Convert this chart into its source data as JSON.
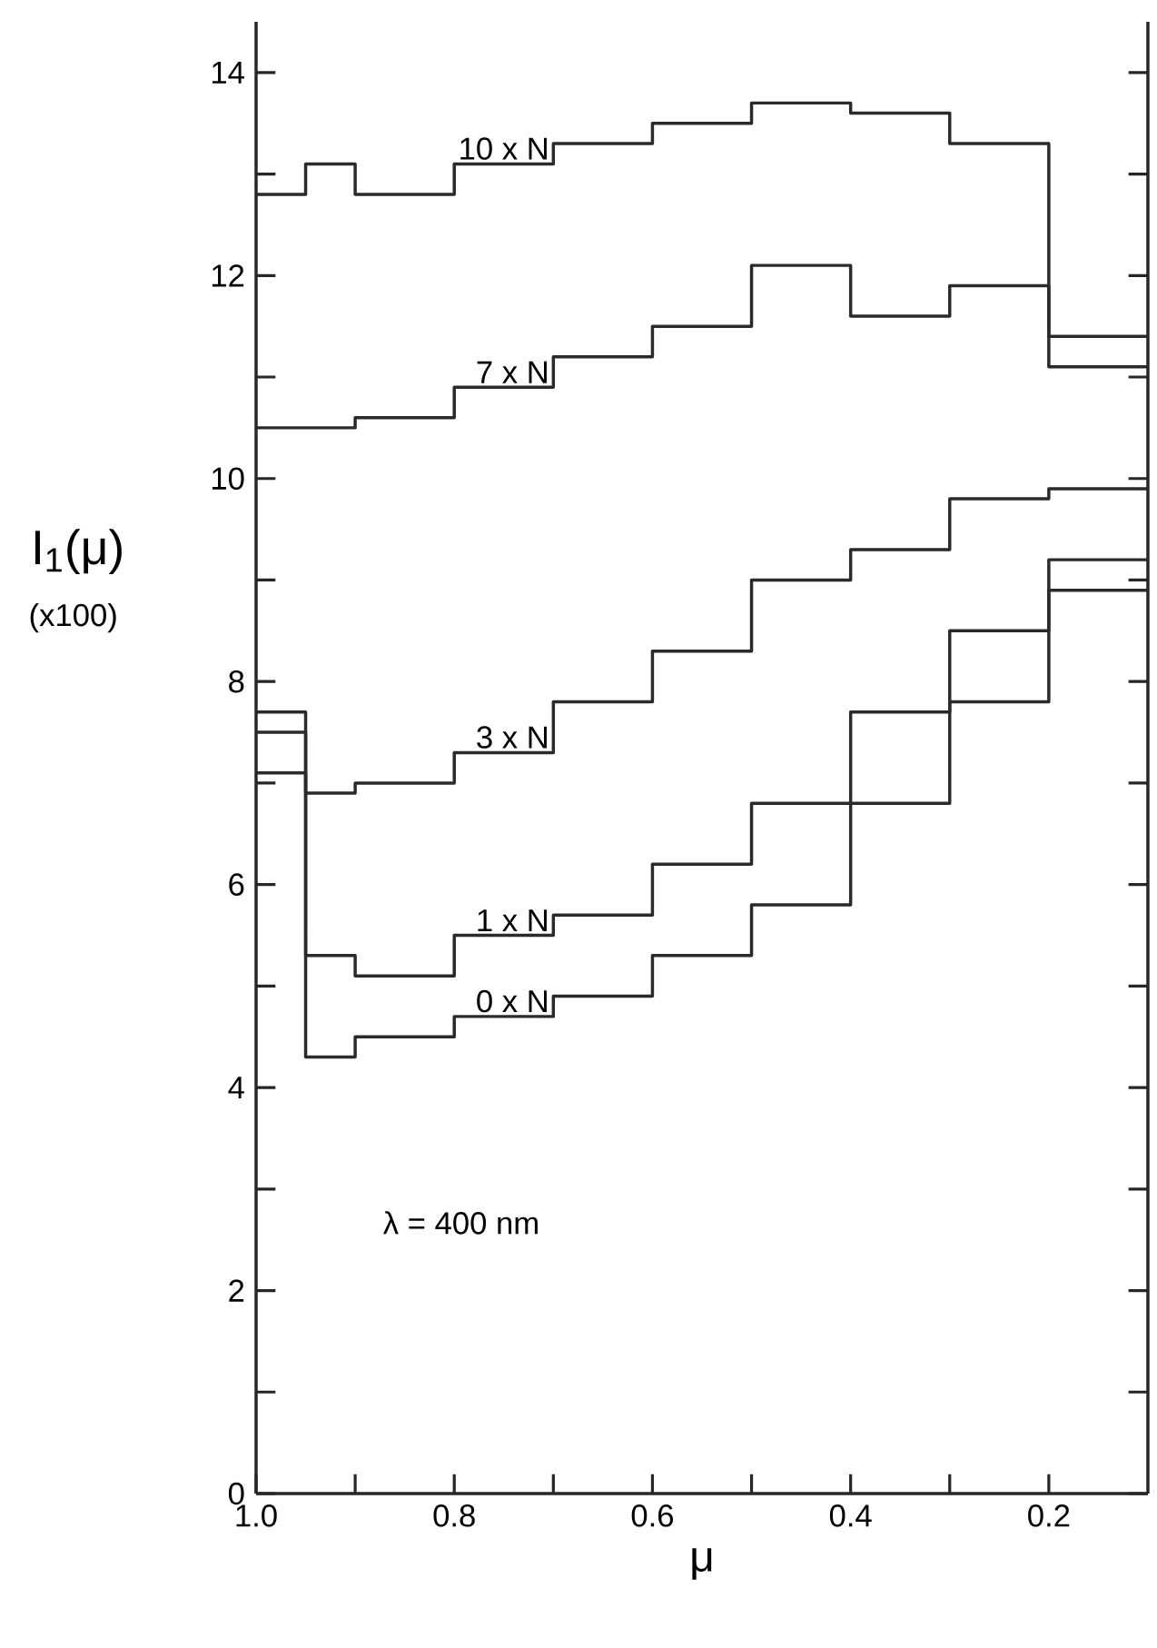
{
  "chart_data": {
    "type": "step",
    "xlabel": "μ",
    "ylabel": "I$_{1}$(μ)",
    "annotations": [
      "(x100)",
      "λ = 400 nm"
    ],
    "x": [
      1.0,
      0.95,
      0.9,
      0.8,
      0.7,
      0.6,
      0.5,
      0.4,
      0.3,
      0.2,
      0.1
    ],
    "series": [
      {
        "name": "10 x N",
        "color": "#2a2a2a",
        "values": [
          12.8,
          13.1,
          12.8,
          13.1,
          13.3,
          13.5,
          13.7,
          13.6,
          13.3,
          11.1,
          11.1
        ]
      },
      {
        "name": "7 x N",
        "color": "#2a2a2a",
        "values": [
          10.5,
          10.5,
          10.6,
          10.9,
          11.2,
          11.5,
          12.1,
          11.6,
          11.9,
          11.4,
          11.4
        ]
      },
      {
        "name": "3 x N",
        "color": "#2a2a2a",
        "values": [
          7.7,
          6.9,
          7.0,
          7.3,
          7.8,
          8.3,
          9.0,
          9.3,
          9.8,
          9.9,
          9.9
        ]
      },
      {
        "name": "1 x N",
        "color": "#2a2a2a",
        "values": [
          7.5,
          5.3,
          5.1,
          5.5,
          5.7,
          6.2,
          6.8,
          7.7,
          8.5,
          9.2,
          9.2
        ]
      },
      {
        "name": "0 x N",
        "color": "#2a2a2a",
        "values": [
          7.1,
          4.3,
          4.5,
          4.7,
          4.9,
          5.3,
          5.8,
          6.8,
          7.8,
          8.9,
          8.9
        ]
      }
    ],
    "xlim": [
      1.0,
      0.1
    ],
    "xticks": [
      {
        "value": 1.0,
        "label": "1.0"
      },
      {
        "value": 0.9,
        "label": null
      },
      0.8,
      {
        "value": 0.7,
        "label": null
      },
      0.6,
      {
        "value": 0.5,
        "label": null
      },
      0.4,
      {
        "value": 0.3,
        "label": null
      },
      0.2
    ],
    "ylim": [
      0,
      14.5
    ],
    "yticks": [
      0,
      {
        "value": 1,
        "label": null
      },
      2,
      {
        "value": 3,
        "label": null
      },
      4,
      {
        "value": 5,
        "label": null
      },
      6,
      {
        "value": 7,
        "label": null
      },
      8,
      {
        "value": 9,
        "label": null
      },
      10,
      {
        "value": 11,
        "label": null
      },
      12,
      {
        "value": 13,
        "label": null
      },
      14
    ],
    "grid": false,
    "legend": false
  }
}
